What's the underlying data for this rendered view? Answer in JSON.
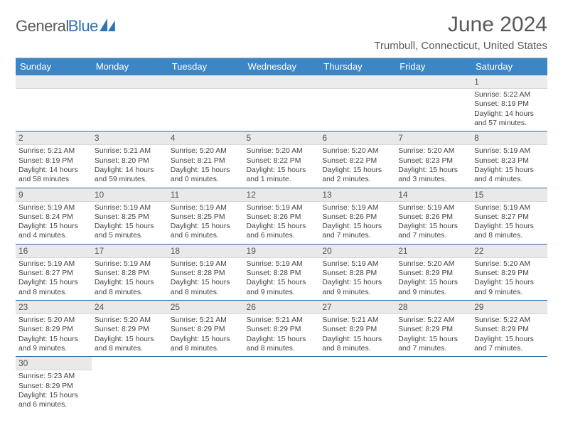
{
  "logo": {
    "text1": "General",
    "text2": "Blue"
  },
  "title": "June 2024",
  "location": "Trumbull, Connecticut, United States",
  "header_bg": "#3d86c6",
  "weekdays": [
    "Sunday",
    "Monday",
    "Tuesday",
    "Wednesday",
    "Thursday",
    "Friday",
    "Saturday"
  ],
  "grid": [
    [
      null,
      null,
      null,
      null,
      null,
      null,
      {
        "n": "1",
        "sr": "5:22 AM",
        "ss": "8:19 PM",
        "dl": "14 hours and 57 minutes."
      }
    ],
    [
      {
        "n": "2",
        "sr": "5:21 AM",
        "ss": "8:19 PM",
        "dl": "14 hours and 58 minutes."
      },
      {
        "n": "3",
        "sr": "5:21 AM",
        "ss": "8:20 PM",
        "dl": "14 hours and 59 minutes."
      },
      {
        "n": "4",
        "sr": "5:20 AM",
        "ss": "8:21 PM",
        "dl": "15 hours and 0 minutes."
      },
      {
        "n": "5",
        "sr": "5:20 AM",
        "ss": "8:22 PM",
        "dl": "15 hours and 1 minute."
      },
      {
        "n": "6",
        "sr": "5:20 AM",
        "ss": "8:22 PM",
        "dl": "15 hours and 2 minutes."
      },
      {
        "n": "7",
        "sr": "5:20 AM",
        "ss": "8:23 PM",
        "dl": "15 hours and 3 minutes."
      },
      {
        "n": "8",
        "sr": "5:19 AM",
        "ss": "8:23 PM",
        "dl": "15 hours and 4 minutes."
      }
    ],
    [
      {
        "n": "9",
        "sr": "5:19 AM",
        "ss": "8:24 PM",
        "dl": "15 hours and 4 minutes."
      },
      {
        "n": "10",
        "sr": "5:19 AM",
        "ss": "8:25 PM",
        "dl": "15 hours and 5 minutes."
      },
      {
        "n": "11",
        "sr": "5:19 AM",
        "ss": "8:25 PM",
        "dl": "15 hours and 6 minutes."
      },
      {
        "n": "12",
        "sr": "5:19 AM",
        "ss": "8:26 PM",
        "dl": "15 hours and 6 minutes."
      },
      {
        "n": "13",
        "sr": "5:19 AM",
        "ss": "8:26 PM",
        "dl": "15 hours and 7 minutes."
      },
      {
        "n": "14",
        "sr": "5:19 AM",
        "ss": "8:26 PM",
        "dl": "15 hours and 7 minutes."
      },
      {
        "n": "15",
        "sr": "5:19 AM",
        "ss": "8:27 PM",
        "dl": "15 hours and 8 minutes."
      }
    ],
    [
      {
        "n": "16",
        "sr": "5:19 AM",
        "ss": "8:27 PM",
        "dl": "15 hours and 8 minutes."
      },
      {
        "n": "17",
        "sr": "5:19 AM",
        "ss": "8:28 PM",
        "dl": "15 hours and 8 minutes."
      },
      {
        "n": "18",
        "sr": "5:19 AM",
        "ss": "8:28 PM",
        "dl": "15 hours and 8 minutes."
      },
      {
        "n": "19",
        "sr": "5:19 AM",
        "ss": "8:28 PM",
        "dl": "15 hours and 9 minutes."
      },
      {
        "n": "20",
        "sr": "5:19 AM",
        "ss": "8:28 PM",
        "dl": "15 hours and 9 minutes."
      },
      {
        "n": "21",
        "sr": "5:20 AM",
        "ss": "8:29 PM",
        "dl": "15 hours and 9 minutes."
      },
      {
        "n": "22",
        "sr": "5:20 AM",
        "ss": "8:29 PM",
        "dl": "15 hours and 9 minutes."
      }
    ],
    [
      {
        "n": "23",
        "sr": "5:20 AM",
        "ss": "8:29 PM",
        "dl": "15 hours and 9 minutes."
      },
      {
        "n": "24",
        "sr": "5:20 AM",
        "ss": "8:29 PM",
        "dl": "15 hours and 8 minutes."
      },
      {
        "n": "25",
        "sr": "5:21 AM",
        "ss": "8:29 PM",
        "dl": "15 hours and 8 minutes."
      },
      {
        "n": "26",
        "sr": "5:21 AM",
        "ss": "8:29 PM",
        "dl": "15 hours and 8 minutes."
      },
      {
        "n": "27",
        "sr": "5:21 AM",
        "ss": "8:29 PM",
        "dl": "15 hours and 8 minutes."
      },
      {
        "n": "28",
        "sr": "5:22 AM",
        "ss": "8:29 PM",
        "dl": "15 hours and 7 minutes."
      },
      {
        "n": "29",
        "sr": "5:22 AM",
        "ss": "8:29 PM",
        "dl": "15 hours and 7 minutes."
      }
    ],
    [
      {
        "n": "30",
        "sr": "5:23 AM",
        "ss": "8:29 PM",
        "dl": "15 hours and 6 minutes."
      },
      null,
      null,
      null,
      null,
      null,
      null
    ]
  ],
  "labels": {
    "sunrise": "Sunrise: ",
    "sunset": "Sunset: ",
    "daylight": "Daylight: "
  }
}
